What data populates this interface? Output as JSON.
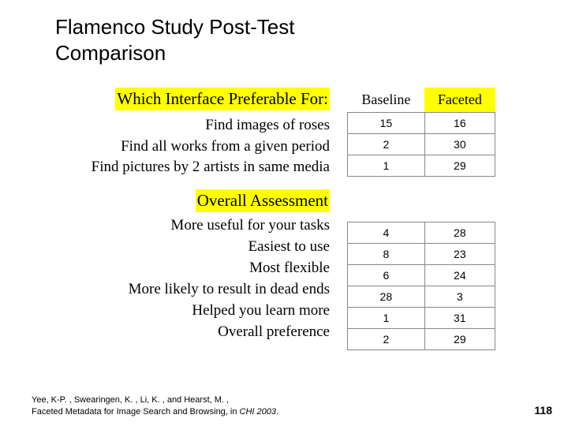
{
  "title_line1": "Flamenco Study Post-Test",
  "title_line2": "Comparison",
  "section1_header": "Which Interface Preferable For:",
  "section1_items": [
    "Find images of roses",
    "Find all works from a given period",
    "Find pictures by 2 artists in same media"
  ],
  "section2_header": "Overall Assessment",
  "section2_items": [
    "More useful for your tasks",
    "Easiest to use",
    "Most flexible",
    "More likely to result in dead ends",
    "Helped you learn more",
    "Overall preference"
  ],
  "table": {
    "columns": [
      "Baseline",
      "Faceted"
    ],
    "group1_rows": [
      [
        "15",
        "16"
      ],
      [
        "2",
        "30"
      ],
      [
        "1",
        "29"
      ]
    ],
    "group2_rows": [
      [
        "4",
        "28"
      ],
      [
        "8",
        "23"
      ],
      [
        "6",
        "24"
      ],
      [
        "28",
        "3"
      ],
      [
        "1",
        "31"
      ],
      [
        "2",
        "29"
      ]
    ],
    "header_faceted_bg": "#ffff00",
    "border_color": "#888888",
    "cell_fontsize": 14,
    "header_fontsize": 18
  },
  "citation_line1": "Yee, K-P. , Swearingen, K. , Li, K. , and Hearst, M. ,",
  "citation_line2a": "Faceted Metadata for Image Search and Browsing, in ",
  "citation_line2b": "CHI 2003",
  "citation_line2c": ".",
  "page_number": "118",
  "colors": {
    "highlight": "#ffff00",
    "text": "#000000",
    "bg": "#ffffff"
  }
}
